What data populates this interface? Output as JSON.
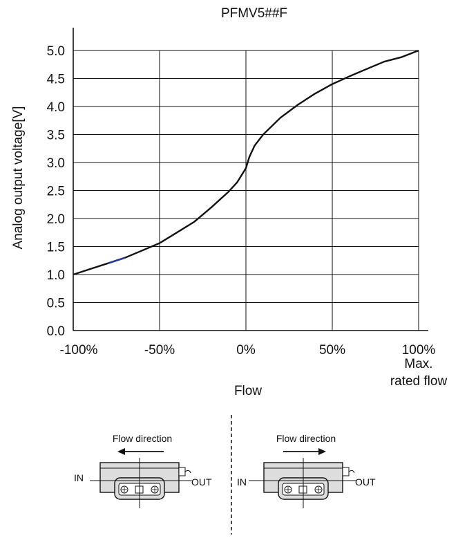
{
  "chart_data": {
    "type": "line",
    "title": "PFMV5##F",
    "xlabel": "Flow",
    "ylabel": "Analog output voltage[V]",
    "x_ticks": [
      "-100%",
      "-50%",
      "0%",
      "50%",
      "100%"
    ],
    "x_tick_values": [
      -100,
      -50,
      0,
      50,
      100
    ],
    "x_end_note": [
      "Max.",
      "rated flow"
    ],
    "y_ticks": [
      "0.0",
      "0.5",
      "1.0",
      "1.5",
      "2.0",
      "2.5",
      "3.0",
      "3.5",
      "4.0",
      "4.5",
      "5.0"
    ],
    "xlim": [
      -100,
      100
    ],
    "ylim": [
      0,
      5
    ],
    "grid": true,
    "series": [
      {
        "x": [
          -100,
          -90,
          -80,
          -70,
          -60,
          -50,
          -40,
          -30,
          -20,
          -10,
          -5,
          0,
          2,
          5,
          10,
          20,
          30,
          40,
          50,
          60,
          70,
          80,
          90,
          100
        ],
        "y": [
          1.0,
          1.1,
          1.2,
          1.3,
          1.43,
          1.56,
          1.75,
          1.94,
          2.2,
          2.48,
          2.65,
          2.9,
          3.1,
          3.3,
          3.5,
          3.8,
          4.03,
          4.23,
          4.4,
          4.54,
          4.67,
          4.8,
          4.88,
          5.0
        ],
        "color": "#111111"
      }
    ],
    "highlight_segment": {
      "x": [
        -80,
        -70
      ],
      "color": "#2a3a9a"
    }
  },
  "diagrams": {
    "left": {
      "caption": "Flow direction",
      "in_label": "IN",
      "out_label": "OUT",
      "arrow": "left"
    },
    "right": {
      "caption": "Flow direction",
      "in_label": "IN",
      "out_label": "OUT",
      "arrow": "right"
    }
  }
}
